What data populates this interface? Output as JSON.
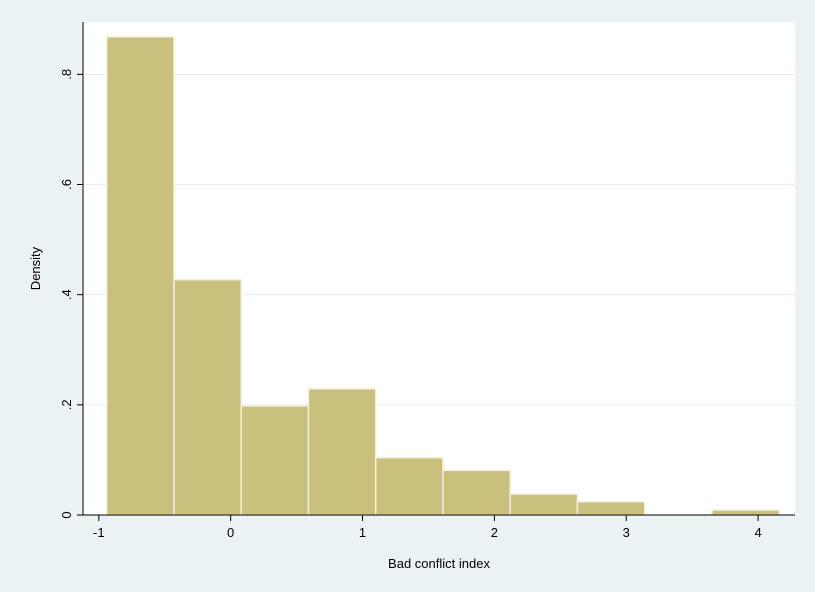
{
  "chart_data": {
    "type": "histogram",
    "xlabel": "Bad conflict index",
    "ylabel": "Density",
    "xlim": [
      -1.12,
      4.28
    ],
    "ylim": [
      0,
      0.895
    ],
    "grid": true,
    "bar_color": "#c8c07c",
    "bar_edge_color": "#f2efdc",
    "plot_background": "#ffffff",
    "figure_background": "#eaf2f3",
    "x_ticks": [
      {
        "value": -1,
        "label": "-1"
      },
      {
        "value": 0,
        "label": "0"
      },
      {
        "value": 1,
        "label": "1"
      },
      {
        "value": 2,
        "label": "2"
      },
      {
        "value": 3,
        "label": "3"
      },
      {
        "value": 4,
        "label": "4"
      }
    ],
    "y_ticks": [
      {
        "value": 0,
        "label": "0"
      },
      {
        "value": 0.2,
        "label": ".2"
      },
      {
        "value": 0.4,
        "label": ".4"
      },
      {
        "value": 0.6,
        "label": ".6"
      },
      {
        "value": 0.8,
        "label": ".8"
      }
    ],
    "bins": [
      {
        "x0": -0.94,
        "x1": -0.43,
        "density": 0.868
      },
      {
        "x0": -0.43,
        "x1": 0.08,
        "density": 0.427
      },
      {
        "x0": 0.08,
        "x1": 0.59,
        "density": 0.198
      },
      {
        "x0": 0.59,
        "x1": 1.1,
        "density": 0.229
      },
      {
        "x0": 1.1,
        "x1": 1.61,
        "density": 0.104
      },
      {
        "x0": 1.61,
        "x1": 2.12,
        "density": 0.081
      },
      {
        "x0": 2.12,
        "x1": 2.63,
        "density": 0.038
      },
      {
        "x0": 2.63,
        "x1": 3.14,
        "density": 0.024
      },
      {
        "x0": 3.14,
        "x1": 3.65,
        "density": 0
      },
      {
        "x0": 3.65,
        "x1": 4.16,
        "density": 0.009
      }
    ]
  }
}
